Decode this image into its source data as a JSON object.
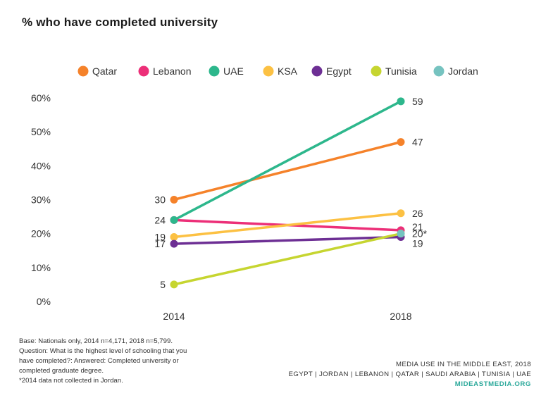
{
  "chart_data": {
    "type": "line",
    "title": "% who have completed university",
    "xlabel": "",
    "ylabel": "",
    "categories": [
      "2014",
      "2018"
    ],
    "ylim": [
      0,
      60
    ],
    "yticks": [
      "0%",
      "10%",
      "20%",
      "30%",
      "40%",
      "50%",
      "60%"
    ],
    "ytick_values": [
      0,
      10,
      20,
      30,
      40,
      50,
      60
    ],
    "legend": [
      "Qatar",
      "Lebanon",
      "UAE",
      "KSA",
      "Egypt",
      "Tunisia",
      "Jordan"
    ],
    "series": [
      {
        "name": "Qatar",
        "color": "#f5822a",
        "values": [
          30,
          47
        ],
        "labels": [
          "30",
          "47"
        ]
      },
      {
        "name": "Lebanon",
        "color": "#ec2f78",
        "values": [
          24,
          21
        ],
        "labels": [
          "24",
          "21"
        ]
      },
      {
        "name": "UAE",
        "color": "#2db78c",
        "values": [
          24,
          59
        ],
        "labels": [
          "",
          "59"
        ]
      },
      {
        "name": "KSA",
        "color": "#fcc143",
        "values": [
          19,
          26
        ],
        "labels": [
          "19",
          "26"
        ]
      },
      {
        "name": "Egypt",
        "color": "#6d2f94",
        "values": [
          17,
          19
        ],
        "labels": [
          "17",
          "19"
        ]
      },
      {
        "name": "Tunisia",
        "color": "#c6d530",
        "values": [
          5,
          20
        ],
        "labels": [
          "5",
          ""
        ]
      },
      {
        "name": "Jordan",
        "color": "#76c3c0",
        "values": [
          null,
          20
        ],
        "labels": [
          "",
          "20*"
        ]
      }
    ]
  },
  "notes": {
    "base": "Base: Nationals only, 2014 n=4,171, 2018 n=5,799.",
    "question_line1": "Question: What is the highest level of schooling that you",
    "question_line2": "have completed?: Answered: Completed university or",
    "question_line3": "completed graduate degree.",
    "footnote": "*2014 data not collected in Jordan."
  },
  "credit": {
    "line1": "MEDIA USE IN THE MIDDLE EAST, 2018",
    "line2": "EGYPT | JORDAN | LEBANON | QATAR | SAUDI ARABIA | TUNISIA | UAE",
    "site": "MIDEASTMEDIA.ORG"
  }
}
